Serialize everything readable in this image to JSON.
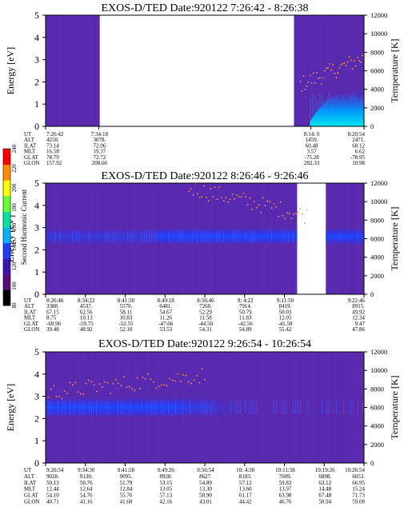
{
  "chart_data": [
    {
      "type": "heatmap",
      "title": "EXOS-D/TED   Date:920122  7:26:42 - 8:26:38",
      "ylabel": "Energy [eV]",
      "y2label": "Temperature [K]",
      "ylim": [
        0,
        5
      ],
      "y2lim": [
        0,
        12000
      ],
      "yticks": [
        "0",
        "1",
        "2",
        "3",
        "4",
        "5"
      ],
      "y2ticks": [
        "0",
        "2000",
        "4000",
        "6000",
        "8000",
        "10000",
        "12000"
      ],
      "data_segments": [
        [
          0.0,
          0.17
        ],
        [
          0.78,
          1.0
        ]
      ],
      "band": {
        "energy_center": null,
        "energy_halfwidth": null
      },
      "heating": {
        "from": 0.83,
        "to": 1.0,
        "energy_max": 1.6
      },
      "temperature_points": {
        "from": 0.8,
        "to": 1.0,
        "t_start": 4500,
        "t_end": 7400,
        "count": 40
      },
      "rows": [
        {
          "label": "UT",
          "values": [
            "7:26:42",
            "7:34:18",
            "",
            "",
            "",
            "8:14: 6",
            "8:20:54"
          ]
        },
        {
          "label": "ALT",
          "values": [
            "4250.",
            "3078.",
            "",
            "",
            "",
            "1459.",
            "2471."
          ]
        },
        {
          "label": "ILAT",
          "values": [
            "73.14",
            "72.06",
            "",
            "",
            "",
            "60.48",
            "68.12"
          ]
        },
        {
          "label": "MLT",
          "values": [
            "16.58",
            "19.37",
            "",
            "",
            "",
            "3.57",
            "6.62"
          ]
        },
        {
          "label": "GLAT",
          "values": [
            "78.79",
            "72.72",
            "",
            "",
            "",
            "-75.28",
            "-78.95"
          ]
        },
        {
          "label": "GLON",
          "values": [
            "157.92",
            "208.66",
            "",
            "",
            "",
            "282.33",
            "10.98"
          ]
        }
      ]
    },
    {
      "type": "heatmap",
      "title": "EXOS-D/TED   Date:920122  8:26:46 - 9:26:46",
      "ylabel": "Energy [eV]",
      "y2label": "Temperature [K]",
      "ylim": [
        0,
        5
      ],
      "y2lim": [
        0,
        12000
      ],
      "yticks": [
        "0",
        "1",
        "2",
        "3",
        "4",
        "5"
      ],
      "y2ticks": [
        "0",
        "2000",
        "4000",
        "6000",
        "8000",
        "10000",
        "12000"
      ],
      "data_segments": [
        [
          0.0,
          0.79
        ],
        [
          0.88,
          1.0
        ]
      ],
      "band": {
        "energy_center": 2.6,
        "energy_halfwidth": 0.35
      },
      "heating": null,
      "temperature_points": {
        "from": 0.45,
        "to": 0.82,
        "t_start": 11500,
        "t_end": 8500,
        "count": 55
      },
      "rows": [
        {
          "label": "UT",
          "values": [
            "8:26:46",
            "8:34:22",
            "8:41:50",
            "8:49:18",
            "8:56:46",
            "9: 4:22",
            "9:11:50",
            "",
            "9:22:46"
          ]
        },
        {
          "label": "ALT",
          "values": [
            "3388.",
            "4537.",
            "5570.",
            "6481.",
            "7260.",
            "7914.",
            "8419.",
            "",
            "8915."
          ]
        },
        {
          "label": "ILAT",
          "values": [
            "67.15",
            "62.56",
            "58.11",
            "54.67",
            "52.29",
            "50.79",
            "50.03",
            "",
            "49.92"
          ]
        },
        {
          "label": "MLT",
          "values": [
            "8.75",
            "10.13",
            "10.83",
            "11.26",
            "11.58",
            "11.83",
            "12.05",
            "",
            "12.34"
          ]
        },
        {
          "label": "GLAT",
          "values": [
            "-69.96",
            "-59.75",
            "-52.55",
            "-47.66",
            "-44.50",
            "-42.56",
            "-41.58",
            "",
            "9.47"
          ]
        },
        {
          "label": "GLON",
          "values": [
            "39.48",
            "48.92",
            "52.10",
            "53.53",
            "54.31",
            "54.89",
            "55.42",
            "",
            "47.86"
          ]
        }
      ]
    },
    {
      "type": "heatmap",
      "title": "EXOS-D/TED   Date:920122  9:26:54 - 10:26:54",
      "ylabel": "Energy [eV]",
      "y2label": "Temperature [K]",
      "ylim": [
        0,
        5
      ],
      "y2lim": [
        0,
        12000
      ],
      "yticks": [
        "0",
        "1",
        "2",
        "3",
        "4",
        "5"
      ],
      "y2ticks": [
        "0",
        "2000",
        "4000",
        "6000",
        "8000",
        "10000",
        "12000"
      ],
      "data_segments": [
        [
          0.0,
          1.0
        ]
      ],
      "band": {
        "energy_center": 2.5,
        "energy_halfwidth": 0.4,
        "fade_from": 0.4,
        "fade_to": 0.6
      },
      "heating": null,
      "temperature_points": {
        "from": 0.0,
        "to": 0.5,
        "t_start": 7600,
        "t_end": 9500,
        "count": 60
      },
      "rows": [
        {
          "label": "UT",
          "values": [
            "9:26:54",
            "9:34:30",
            "9:41:58",
            "9:49:26",
            "9:56:54",
            "10: 4:30",
            "10:11:58",
            "10:19:26",
            "10:26:54"
          ]
        },
        {
          "label": "ALT",
          "values": [
            "9028.",
            "9130.",
            "9095.",
            "8928.",
            "8627.",
            "8183.",
            "7609.",
            "6898.",
            "6053."
          ]
        },
        {
          "label": "ILAT",
          "values": [
            "50.13",
            "50.76",
            "51.79",
            "53.15",
            "54.89",
            "57.12",
            "59.83",
            "63.12",
            "66.95"
          ]
        },
        {
          "label": "MLT",
          "values": [
            "12.44",
            "12.64",
            "12.84",
            "13.05",
            "13.30",
            "13.60",
            "13.97",
            "14.48",
            "15.24"
          ]
        },
        {
          "label": "GLAT",
          "values": [
            "54.10",
            "54.76",
            "55.76",
            "57.13",
            "58.90",
            "61.17",
            "63.98",
            "67.48",
            "71.73"
          ]
        },
        {
          "label": "GLON",
          "values": [
            "40.71",
            "41.16",
            "41.60",
            "42.16",
            "43.01",
            "44.42",
            "46.76",
            "50.94",
            "59.08"
          ]
        }
      ]
    }
  ],
  "colorbar": {
    "label": "Second Harmonic Current",
    "ticks": [
      "80",
      "100",
      "120",
      "140",
      "160",
      "180",
      "200",
      "220",
      "240"
    ],
    "colors": [
      "#000000",
      "#5a0a78",
      "#3c14b4",
      "#1e3cff",
      "#00b4ff",
      "#00e6a0",
      "#64ff32",
      "#ffff00",
      "#ff8c00",
      "#ff0000"
    ]
  },
  "colors": {
    "background": "#5a2bb0",
    "band": "#2838f0",
    "band_core": "#1e48ff",
    "heating": [
      "#1e3cff",
      "#00a0ff",
      "#00e0f0"
    ],
    "temperature_points": "#ff9a3c"
  }
}
